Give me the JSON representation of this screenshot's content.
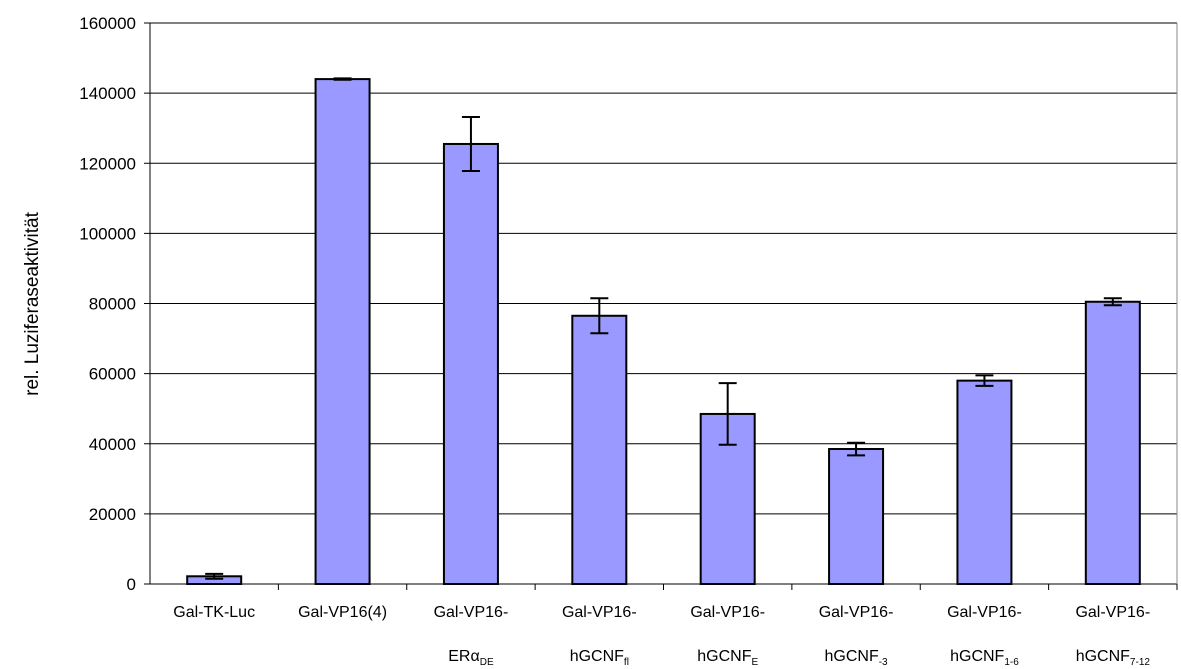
{
  "chart_data": {
    "type": "bar",
    "title": "",
    "xlabel": "",
    "ylabel": "rel. Luziferaseaktivität",
    "ylim": [
      0,
      160000
    ],
    "yticks": [
      0,
      20000,
      40000,
      60000,
      80000,
      100000,
      120000,
      140000,
      160000
    ],
    "grid": "horizontal",
    "legend": "none",
    "bar_color": "#9999ff",
    "bar_edge_color": "#000000",
    "categories": [
      {
        "line1": "Gal-TK-Luc",
        "line2": "",
        "sub": ""
      },
      {
        "line1": "Gal-VP16(4)",
        "line2": "",
        "sub": ""
      },
      {
        "line1": "Gal-VP16-",
        "line2": "ERα",
        "sub": "DE"
      },
      {
        "line1": "Gal-VP16-",
        "line2": "hGCNF",
        "sub": "fl"
      },
      {
        "line1": "Gal-VP16-",
        "line2": "hGCNF",
        "sub": "E"
      },
      {
        "line1": "Gal-VP16-",
        "line2": "hGCNF",
        "sub": "-3"
      },
      {
        "line1": "Gal-VP16-",
        "line2": "hGCNF",
        "sub": "1-6"
      },
      {
        "line1": "Gal-VP16-",
        "line2": "hGCNF",
        "sub": "7-12"
      }
    ],
    "values": [
      2200,
      144000,
      125500,
      76500,
      48500,
      38500,
      58000,
      80500
    ],
    "errors": [
      700,
      200,
      7700,
      5000,
      8800,
      1800,
      1500,
      1000
    ]
  }
}
